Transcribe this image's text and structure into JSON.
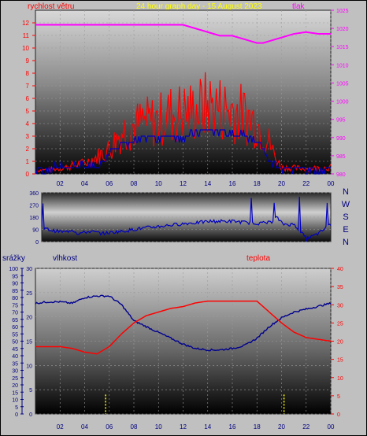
{
  "header": {
    "title": "24 hour graph day - 15 August 2023",
    "left_label": "rychlost větru",
    "right_label": "tlak"
  },
  "colors": {
    "wind": "#ff0000",
    "direction": "#0000c0",
    "pressure": "#ff00ff",
    "humidity": "#000090",
    "temperature": "#ff0000",
    "rain": "#ffff00",
    "title": "#ffff00",
    "left_axis_wind": "#ff0000",
    "right_axis_pressure": "#ff00ff"
  },
  "chart_data": [
    {
      "type": "line",
      "name": "wind_pressure",
      "x_tick_labels": [
        "02",
        "04",
        "06",
        "08",
        "10",
        "12",
        "14",
        "16",
        "18",
        "20",
        "22",
        "00"
      ],
      "xlim": [
        0,
        24
      ],
      "y_left": {
        "label": "rychlost větru",
        "range": [
          0,
          13
        ],
        "ticks": [
          0,
          1,
          2,
          3,
          4,
          5,
          6,
          7,
          8,
          9,
          10,
          11,
          12
        ]
      },
      "y_right": {
        "label": "tlak",
        "range": [
          980,
          1025
        ],
        "ticks": [
          980,
          985,
          990,
          995,
          1000,
          1005,
          1010,
          1015,
          1020,
          1025
        ]
      },
      "series": [
        {
          "axis": "right",
          "x": [
            0,
            1,
            2,
            3,
            4,
            5,
            6,
            7,
            8,
            9,
            10,
            11,
            12,
            13,
            14,
            15,
            16,
            17,
            18,
            18.5,
            19,
            20,
            21,
            22,
            23,
            24
          ],
          "values": [
            1021,
            1021,
            1021,
            1021,
            1021,
            1021,
            1021,
            1021,
            1021,
            1021,
            1021,
            1021,
            1021,
            1020,
            1019,
            1018,
            1018,
            1017,
            1016,
            1016,
            1016.5,
            1017.5,
            1018.5,
            1019,
            1018.5,
            1018.5
          ]
        },
        {
          "axis": "left",
          "x": [
            0,
            2,
            4,
            5,
            6,
            7,
            8,
            9,
            10,
            11,
            12,
            13,
            14,
            15,
            16,
            17,
            18,
            19,
            19.5,
            20,
            22,
            24
          ],
          "values": [
            0.3,
            0.5,
            1.0,
            1.6,
            2.3,
            4.0,
            4.5,
            4.8,
            5.0,
            5.6,
            5.8,
            5.9,
            6.5,
            6.2,
            6.0,
            5.5,
            4.8,
            3.0,
            1.5,
            0.6,
            0.5,
            0.6
          ]
        },
        {
          "axis": "left",
          "x": [
            0,
            2,
            4,
            5,
            5.5,
            6,
            7,
            8,
            9,
            10,
            11,
            12,
            13,
            14,
            15,
            16,
            17,
            18,
            18.5,
            19,
            20,
            22,
            24
          ],
          "values": [
            0.3,
            0.5,
            0.6,
            0.5,
            1.0,
            1.8,
            2.4,
            2.5,
            2.8,
            2.9,
            3.0,
            2.9,
            3.2,
            3.4,
            3.5,
            3.3,
            3.0,
            2.6,
            2.2,
            1.0,
            0.5,
            0.4,
            0.4
          ]
        }
      ]
    },
    {
      "type": "line",
      "name": "wind_direction",
      "x_tick_labels": [],
      "xlim": [
        0,
        24
      ],
      "ylim": [
        0,
        360
      ],
      "y_ticks": [
        0,
        90,
        180,
        270,
        360
      ],
      "cardinal_labels": [
        "N",
        "W",
        "S",
        "E",
        "N"
      ],
      "series": [
        {
          "x": [
            0,
            1,
            2,
            2.5,
            3,
            4,
            5,
            6,
            7,
            8,
            9,
            10,
            11,
            12,
            13,
            14,
            15,
            16,
            17,
            18,
            19,
            19.5,
            20,
            21,
            22,
            23,
            24
          ],
          "values": [
            100,
            80,
            70,
            90,
            60,
            75,
            60,
            70,
            80,
            95,
            105,
            115,
            125,
            135,
            140,
            150,
            150,
            150,
            140,
            135,
            140,
            180,
            130,
            125,
            20,
            60,
            130
          ]
        }
      ]
    },
    {
      "type": "line",
      "name": "humidity_temperature",
      "x_tick_labels": [
        "02",
        "04",
        "06",
        "08",
        "10",
        "12",
        "14",
        "16",
        "18",
        "20",
        "22",
        "00"
      ],
      "xlim": [
        0,
        24
      ],
      "y_rain": {
        "label": "srážky",
        "range": [
          0,
          100
        ],
        "ticks": [
          0,
          5,
          10,
          15,
          20,
          25,
          30,
          35,
          40,
          45,
          50,
          55,
          60,
          65,
          70,
          75,
          80,
          85,
          90,
          95,
          100
        ]
      },
      "y_humidity": {
        "label": "vlhkost",
        "range": [
          0,
          30
        ],
        "ticks": [
          0,
          5,
          10,
          15,
          20,
          25,
          30
        ]
      },
      "y_temperature": {
        "label": "teplota",
        "range": [
          0,
          40
        ],
        "ticks": [
          0,
          5,
          10,
          15,
          20,
          25,
          30,
          35,
          40
        ]
      },
      "series": [
        {
          "name": "vlhkost",
          "axis": "rain",
          "x": [
            0,
            1,
            2,
            3,
            4,
            5,
            6,
            7,
            8,
            9,
            10,
            11,
            12,
            13,
            14,
            15,
            16,
            17,
            18,
            19,
            20,
            21,
            22,
            23,
            24
          ],
          "values": [
            76,
            77,
            77,
            76,
            80,
            81,
            81,
            75,
            64,
            60,
            56,
            52,
            48,
            45,
            44,
            44,
            45,
            47,
            52,
            60,
            66,
            70,
            72,
            74,
            76
          ]
        },
        {
          "name": "teplota",
          "axis": "temperature",
          "x": [
            0,
            1,
            2,
            3,
            4,
            5,
            6,
            7,
            8,
            9,
            10,
            11,
            12,
            13,
            14,
            15,
            16,
            17,
            18,
            19,
            20,
            21,
            22,
            23,
            24
          ],
          "values": [
            18.5,
            18.5,
            18.5,
            18,
            17,
            16.5,
            18.5,
            22,
            25,
            27,
            28,
            29,
            29.5,
            30.5,
            31,
            31,
            31,
            31,
            31,
            28,
            25,
            22.5,
            21,
            20.5,
            20
          ]
        },
        {
          "name": "srážky",
          "axis": "humidity",
          "x": [
            5.7,
            20.2
          ],
          "values": [
            4,
            4
          ]
        }
      ]
    }
  ]
}
